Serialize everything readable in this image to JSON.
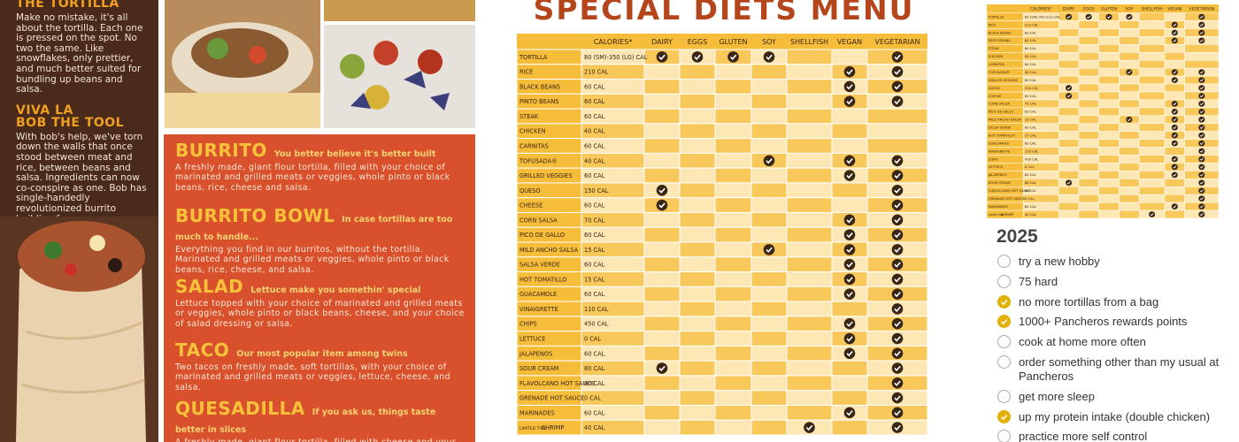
{
  "left_panel": {
    "heading": "THE TORTILLA",
    "text": "Make no mistake, it's all about the tortilla. Each one is pressed on the spot. No two the same. Like snowflakes, only prettier, and much better suited for bundling up beans and salsa.",
    "subheading": [
      "VIVA LA",
      "BOB THE TOOL"
    ],
    "text2": "With bob's help, we've torn down the walls that once stood between meat and rice, between beans and salsa. Ingredients can now co-conspire as one. Bob has single-handedly revolutionized burrito building forever."
  },
  "menu": [
    {
      "name": "BURRITO",
      "tagline": "You better believe it's better built",
      "description": "A freshly made, giant flour tortilla, filled with your choice of marinated and grilled meats or veggies, whole pinto or black beans, rice, cheese and salsa."
    },
    {
      "name": "BURRITO BOWL",
      "tagline": "In case tortillas are too much to handle...",
      "description": "Everything you find in our burritos, without the tortilla. Marinated and grilled meats or veggies, whole pinto or black beans, rice, cheese, and salsa."
    },
    {
      "name": "SALAD",
      "tagline": "Lettuce make you somethin' special",
      "description": "Lettuce topped with your choice of marinated and grilled meats or veggies, whole pinto or black beans, cheese, and your choice of salad dressing or salsa."
    },
    {
      "name": "TACO",
      "tagline": "Our most popular item among twins",
      "description": "Two tacos on freshly made, soft tortillas, with your choice of marinated and grilled meats or veggies, lettuce, cheese, and salsa."
    },
    {
      "name": "QUESADILLA",
      "tagline": "If you ask us, things taste better in slices",
      "description": "A freshly made, giant flour tortilla, filled with cheese and your choice of marinated and grilled meats or veggies. Choose one of"
    }
  ],
  "diet_menu": {
    "title": "SPECIAL DIETS MENU",
    "columns": [
      "CALORIES*",
      "DAIRY",
      "EGGS",
      "GLUTEN",
      "SOY",
      "SHELLFISH",
      "VEGAN",
      "VEGETARIAN"
    ],
    "rows": [
      {
        "item": "TORTILLA",
        "calories": "80 (SM)-350 (LG) CAL",
        "flags": [
          true,
          true,
          true,
          true,
          false,
          false,
          true
        ]
      },
      {
        "item": "RICE",
        "calories": "210 CAL",
        "flags": [
          false,
          false,
          false,
          false,
          false,
          true,
          true
        ]
      },
      {
        "item": "BLACK BEANS",
        "calories": "60 CAL",
        "flags": [
          false,
          false,
          false,
          false,
          false,
          true,
          true
        ]
      },
      {
        "item": "PINTO BEANS",
        "calories": "60 CAL",
        "flags": [
          false,
          false,
          false,
          false,
          false,
          true,
          true
        ]
      },
      {
        "item": "STEAK",
        "calories": "60 CAL",
        "flags": [
          false,
          false,
          false,
          false,
          false,
          false,
          false
        ]
      },
      {
        "item": "CHICKEN",
        "calories": "40 CAL",
        "flags": [
          false,
          false,
          false,
          false,
          false,
          false,
          false
        ]
      },
      {
        "item": "CARNITAS",
        "calories": "60 CAL",
        "flags": [
          false,
          false,
          false,
          false,
          false,
          false,
          false
        ]
      },
      {
        "item": "TOFUSADA®",
        "calories": "40 CAL",
        "flags": [
          false,
          false,
          false,
          true,
          false,
          true,
          true
        ]
      },
      {
        "item": "GRILLED VEGGIES",
        "calories": "60 CAL",
        "flags": [
          false,
          false,
          false,
          false,
          false,
          true,
          true
        ]
      },
      {
        "item": "QUESO",
        "calories": "150 CAL",
        "flags": [
          true,
          false,
          false,
          false,
          false,
          false,
          true
        ]
      },
      {
        "item": "CHEESE",
        "calories": "60 CAL",
        "flags": [
          true,
          false,
          false,
          false,
          false,
          false,
          true
        ]
      },
      {
        "item": "CORN SALSA",
        "calories": "70 CAL",
        "flags": [
          false,
          false,
          false,
          false,
          false,
          true,
          true
        ]
      },
      {
        "item": "PICO DE GALLO",
        "calories": "60 CAL",
        "flags": [
          false,
          false,
          false,
          false,
          false,
          true,
          true
        ]
      },
      {
        "item": "MILD ANCHO SALSA",
        "calories": "15 CAL",
        "flags": [
          false,
          false,
          false,
          true,
          false,
          true,
          true
        ]
      },
      {
        "item": "SALSA VERDE",
        "calories": "60 CAL",
        "flags": [
          false,
          false,
          false,
          false,
          false,
          true,
          true
        ]
      },
      {
        "item": "HOT TOMATILLO",
        "calories": "15 CAL",
        "flags": [
          false,
          false,
          false,
          false,
          false,
          true,
          true
        ]
      },
      {
        "item": "GUACAMOLE",
        "calories": "60 CAL",
        "flags": [
          false,
          false,
          false,
          false,
          false,
          true,
          true
        ]
      },
      {
        "item": "VINAIGRETTE",
        "calories": "110 CAL",
        "flags": [
          false,
          false,
          false,
          false,
          false,
          false,
          true
        ]
      },
      {
        "item": "CHIPS",
        "calories": "450 CAL",
        "flags": [
          false,
          false,
          false,
          false,
          false,
          true,
          true
        ]
      },
      {
        "item": "LETTUCE",
        "calories": "0 CAL",
        "flags": [
          false,
          false,
          false,
          false,
          false,
          true,
          true
        ]
      },
      {
        "item": "JALAPENOS",
        "calories": "60 CAL",
        "flags": [
          false,
          false,
          false,
          false,
          false,
          true,
          true
        ]
      },
      {
        "item": "SOUR CREAM",
        "calories": "80 CAL",
        "flags": [
          true,
          false,
          false,
          false,
          false,
          false,
          true
        ]
      },
      {
        "item": "FLAVOLCANO HOT SAUCE",
        "calories": "60 CAL",
        "flags": [
          false,
          false,
          false,
          false,
          false,
          false,
          true
        ]
      },
      {
        "item": "GRENADE HOT SAUCE",
        "calories": "0 CAL",
        "flags": [
          false,
          false,
          false,
          false,
          false,
          false,
          true
        ]
      },
      {
        "item": "MARINADES",
        "calories": "60 CAL",
        "flags": [
          false,
          false,
          false,
          false,
          false,
          true,
          true
        ]
      },
      {
        "item": "SHRIMP",
        "tag": "LIMITED TIME",
        "calories": "40 CAL",
        "flags": [
          false,
          false,
          false,
          false,
          true,
          false,
          true
        ]
      }
    ]
  },
  "checklist": {
    "title": "2025",
    "items": [
      {
        "text": "try a new hobby",
        "checked": false
      },
      {
        "text": "75 hard",
        "checked": false
      },
      {
        "text": "no more tortillas from a bag",
        "checked": true
      },
      {
        "text": "1000+ Pancheros rewards points",
        "checked": true
      },
      {
        "text": "cook at home more often",
        "checked": false
      },
      {
        "text": "order something other than my usual at Pancheros",
        "checked": false
      },
      {
        "text": "get more sleep",
        "checked": false
      },
      {
        "text": "up my protein intake (double chicken)",
        "checked": true
      },
      {
        "text": "practice more self control",
        "checked": false
      }
    ]
  }
}
